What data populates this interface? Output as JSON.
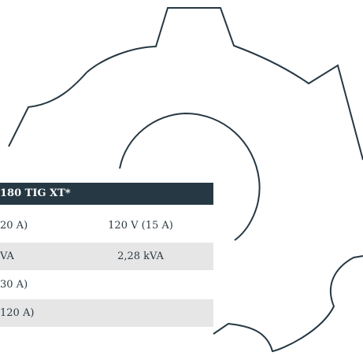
{
  "table": {
    "header": "180 TIG XT*",
    "rows": [
      {
        "left": "20 A)",
        "right": "120 V (15 A)"
      },
      {
        "left": "VA",
        "right": "2,28 kVA"
      },
      {
        "left": "30 A)"
      },
      {
        "left": "120 A)"
      }
    ]
  },
  "colors": {
    "header_bg": "#263843",
    "text": "#2c3942",
    "row_shade": "#e6e6e6",
    "line": "#263843"
  },
  "icons": [
    "gear-outline-icon"
  ]
}
